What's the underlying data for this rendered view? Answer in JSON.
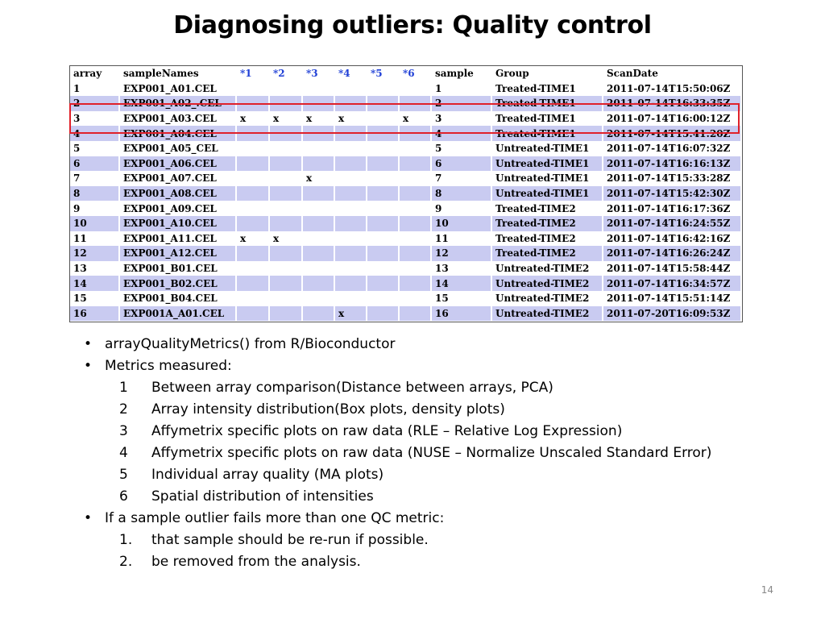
{
  "title": "Diagnosing outliers: Quality control",
  "table": {
    "headers": [
      "array",
      "sampleNames",
      "*1",
      "*2",
      "*3",
      "*4",
      "*5",
      "*6",
      "sample",
      "Group",
      "ScanDate"
    ],
    "rows": [
      [
        "1",
        "EXP001_A01.CEL",
        "",
        "",
        "",
        "",
        "",
        "",
        "1",
        "Treated-TIME1",
        "2011-07-14T15:50:06Z"
      ],
      [
        "2",
        "EXP001_A02_.CEL",
        "",
        "",
        "",
        "",
        "",
        "",
        "2",
        "Treated-TIME1",
        "2011-07-14T16:33:35Z"
      ],
      [
        "3",
        "EXP001_A03.CEL",
        "x",
        "x",
        "x",
        "x",
        "",
        "x",
        "3",
        "Treated-TIME1",
        "2011-07-14T16:00:12Z"
      ],
      [
        "4",
        "EXP001_A04.CEL",
        "",
        "",
        "",
        "",
        "",
        "",
        "4",
        "Treated-TIME1",
        "2011-07-14T15:41:20Z"
      ],
      [
        "5",
        "EXP001_A05_CEL",
        "",
        "",
        "",
        "",
        "",
        "",
        "5",
        "Untreated-TIME1",
        "2011-07-14T16:07:32Z"
      ],
      [
        "6",
        "EXP001_A06.CEL",
        "",
        "",
        "",
        "",
        "",
        "",
        "6",
        "Untreated-TIME1",
        "2011-07-14T16:16:13Z"
      ],
      [
        "7",
        "EXP001_A07.CEL",
        "",
        "",
        "x",
        "",
        "",
        "",
        "7",
        "Untreated-TIME1",
        "2011-07-14T15:33:28Z"
      ],
      [
        "8",
        "EXP001_A08.CEL",
        "",
        "",
        "",
        "",
        "",
        "",
        "8",
        "Untreated-TIME1",
        "2011-07-14T15:42:30Z"
      ],
      [
        "9",
        "EXP001_A09.CEL",
        "",
        "",
        "",
        "",
        "",
        "",
        "9",
        "Treated-TIME2",
        "2011-07-14T16:17:36Z"
      ],
      [
        "10",
        "EXP001_A10.CEL",
        "",
        "",
        "",
        "",
        "",
        "",
        "10",
        "Treated-TIME2",
        "2011-07-14T16:24:55Z"
      ],
      [
        "11",
        "EXP001_A11.CEL",
        "x",
        "x",
        "",
        "",
        "",
        "",
        "11",
        "Treated-TIME2",
        "2011-07-14T16:42:16Z"
      ],
      [
        "12",
        "EXP001_A12.CEL",
        "",
        "",
        "",
        "",
        "",
        "",
        "12",
        "Treated-TIME2",
        "2011-07-14T16:26:24Z"
      ],
      [
        "13",
        "EXP001_B01.CEL",
        "",
        "",
        "",
        "",
        "",
        "",
        "13",
        "Untreated-TIME2",
        "2011-07-14T15:58:44Z"
      ],
      [
        "14",
        "EXP001_B02.CEL",
        "",
        "",
        "",
        "",
        "",
        "",
        "14",
        "Untreated-TIME2",
        "2011-07-14T16:34:57Z"
      ],
      [
        "15",
        "EXP001_B04.CEL",
        "",
        "",
        "",
        "",
        "",
        "",
        "15",
        "Untreated-TIME2",
        "2011-07-14T15:51:14Z"
      ],
      [
        "16",
        "EXP001A_A01.CEL",
        "",
        "",
        "",
        "x",
        "",
        "",
        "16",
        "Untreated-TIME2",
        "2011-07-20T16:09:53Z"
      ]
    ],
    "highlighted_rows": [
      3
    ],
    "colors": {
      "stripe": "#c9cbf1",
      "star_header": "#1f3fd6",
      "highlight_border": "#e0212a"
    }
  },
  "bullets": {
    "b1": "arrayQualityMetrics() from R/Bioconductor",
    "b2": "Metrics measured:",
    "metrics": [
      {
        "num": "1",
        "text": "Between array comparison(Distance between arrays, PCA)"
      },
      {
        "num": "2",
        "text": "Array intensity distribution(Box plots, density plots)"
      },
      {
        "num": "3",
        "text": "Affymetrix specific plots on raw data (RLE – Relative Log Expression)"
      },
      {
        "num": "4",
        "text": "Affymetrix specific plots on raw data (NUSE – Normalize Unscaled Standard Error)"
      },
      {
        "num": "5",
        "text": "Individual array quality (MA plots)"
      },
      {
        "num": "6",
        "text": "Spatial distribution of intensities"
      }
    ],
    "b3": "If a sample outlier fails more than one QC metric:",
    "actions": [
      {
        "num": "1.",
        "text": "that sample should be re-run if possible."
      },
      {
        "num": "2.",
        "text": "be removed from the analysis."
      }
    ],
    "bullet_glyph": "•"
  },
  "page_number": "14"
}
